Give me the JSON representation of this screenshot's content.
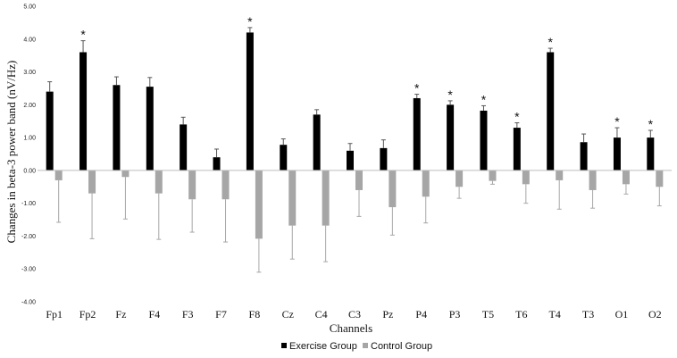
{
  "chart_data": {
    "type": "bar",
    "xlabel": "Channels",
    "ylabel": "Changes in beta-3 power band (nV/Hz)",
    "ylim": [
      -4,
      5
    ],
    "ytick_step": 1,
    "ytick_labels": [
      "5.00",
      "4.00",
      "3.00",
      "2.00",
      "1.00",
      "0.00",
      "-1.00",
      "-2.00",
      "-3.00",
      "-4.00"
    ],
    "grid": false,
    "legend_position": "bottom",
    "categories": [
      "Fp1",
      "Fp2",
      "Fz",
      "F4",
      "F3",
      "F7",
      "F8",
      "Cz",
      "C4",
      "C3",
      "Pz",
      "P4",
      "P3",
      "T5",
      "T6",
      "T4",
      "T3",
      "O1",
      "O2"
    ],
    "series": [
      {
        "name": "Exercise Group",
        "color": "#000000",
        "values": [
          2.4,
          3.6,
          2.6,
          2.55,
          1.4,
          0.4,
          4.2,
          0.78,
          1.7,
          0.6,
          0.68,
          2.2,
          2.0,
          1.82,
          1.3,
          3.6,
          0.86,
          1.0,
          1.0
        ],
        "errors": [
          0.3,
          0.35,
          0.25,
          0.28,
          0.22,
          0.25,
          0.15,
          0.18,
          0.15,
          0.22,
          0.25,
          0.12,
          0.12,
          0.15,
          0.15,
          0.12,
          0.25,
          0.3,
          0.22
        ],
        "significant": [
          false,
          true,
          false,
          false,
          false,
          false,
          true,
          false,
          false,
          false,
          false,
          true,
          true,
          true,
          true,
          true,
          false,
          true,
          true
        ]
      },
      {
        "name": "Control Group",
        "color": "#a6a6a6",
        "values": [
          -0.3,
          -0.7,
          -0.2,
          -0.7,
          -0.88,
          -0.88,
          -2.08,
          -1.68,
          -1.68,
          -0.6,
          -1.12,
          -0.8,
          -0.5,
          -0.32,
          -0.42,
          -0.3,
          -0.6,
          -0.42,
          -0.5
        ],
        "errors": [
          1.28,
          1.38,
          1.28,
          1.4,
          1.0,
          1.3,
          1.02,
          1.02,
          1.1,
          0.8,
          0.85,
          0.8,
          0.35,
          0.1,
          0.58,
          0.88,
          0.55,
          0.3,
          0.58
        ]
      }
    ],
    "significance_marker": "*"
  }
}
